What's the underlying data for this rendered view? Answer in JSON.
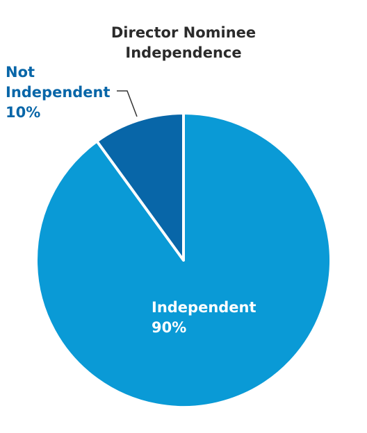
{
  "chart_data": {
    "type": "pie",
    "title": "Director Nominee Independence",
    "categories": [
      "Independent",
      "Not Independent"
    ],
    "values": [
      90,
      10
    ],
    "value_labels": [
      "90%",
      "10%"
    ],
    "colors": [
      "#0a9ad6",
      "#0866a8"
    ]
  }
}
